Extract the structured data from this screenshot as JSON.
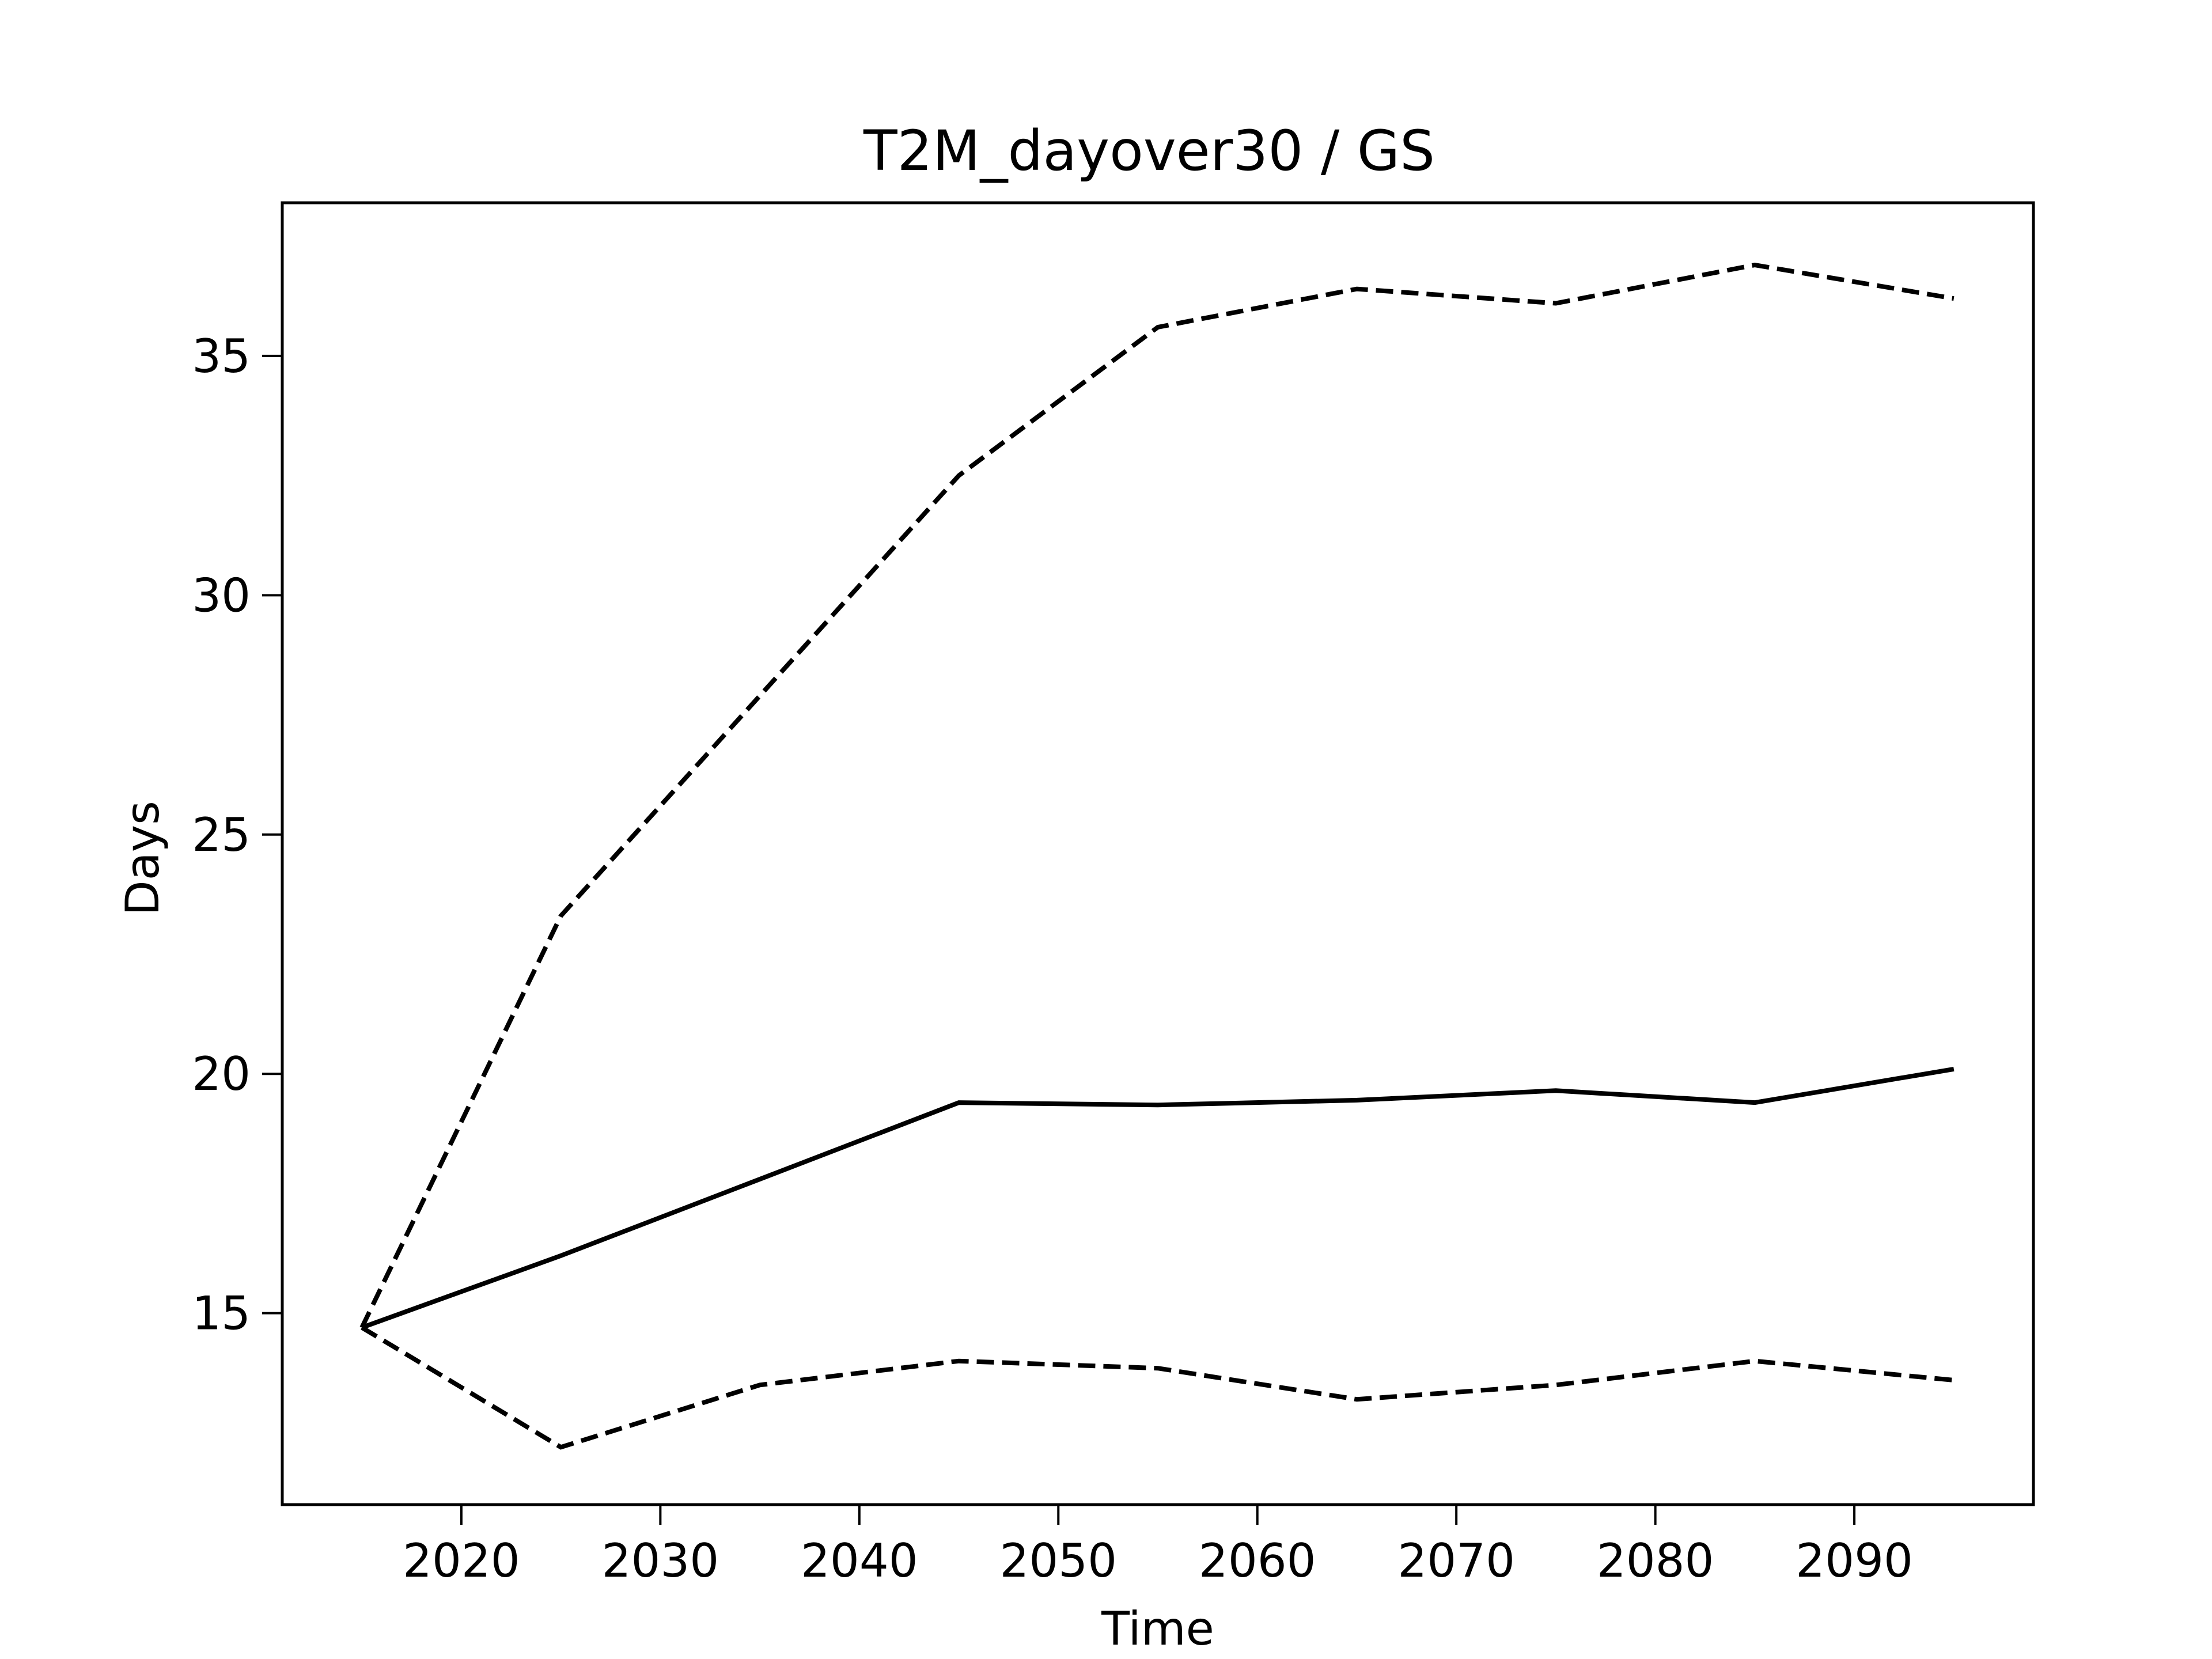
{
  "chart_data": {
    "type": "line",
    "title": "T2M_dayover30 / GS",
    "xlabel": "Time",
    "ylabel": "Days",
    "xlim": [
      2011,
      2099
    ],
    "ylim": [
      11.0,
      38.2
    ],
    "x_ticks": [
      2020,
      2030,
      2040,
      2050,
      2060,
      2070,
      2080,
      2090
    ],
    "y_ticks": [
      15,
      20,
      25,
      30,
      35
    ],
    "grid": false,
    "legend": "none",
    "x": [
      2015,
      2025,
      2035,
      2045,
      2055,
      2065,
      2075,
      2085,
      2095
    ],
    "series": [
      {
        "values": [
          14.7,
          23.3,
          27.9,
          32.5,
          35.6,
          36.4,
          36.1,
          36.9,
          36.2
        ],
        "style": "dashed",
        "color": "#000000"
      },
      {
        "values": [
          14.7,
          16.2,
          17.8,
          19.4,
          19.35,
          19.45,
          19.65,
          19.4,
          20.1
        ],
        "style": "solid",
        "color": "#000000"
      },
      {
        "values": [
          14.7,
          12.2,
          13.5,
          14.0,
          13.85,
          13.2,
          13.5,
          14.0,
          13.6
        ],
        "style": "dashed",
        "color": "#000000"
      }
    ]
  }
}
